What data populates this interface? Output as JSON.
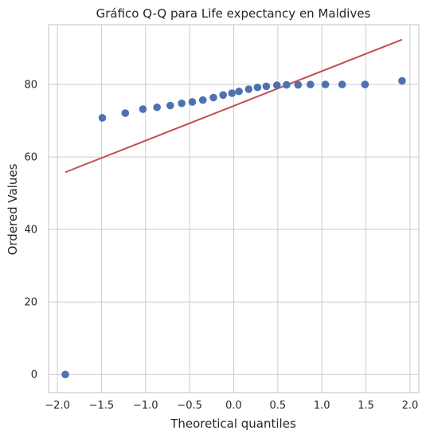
{
  "chart_data": {
    "type": "scatter",
    "title": "Gráfico Q-Q para Life expectancy en Maldives",
    "xlabel": "Theoretical quantiles",
    "ylabel": "Ordered Values",
    "xlim": [
      -2.1,
      2.1
    ],
    "ylim": [
      -5,
      96.5
    ],
    "xticks": [
      -2.0,
      -1.5,
      -1.0,
      -0.5,
      0.0,
      0.5,
      1.0,
      1.5,
      2.0
    ],
    "xtick_labels": [
      "−2.0",
      "−1.5",
      "−1.0",
      "−0.5",
      "0.0",
      "0.5",
      "1.0",
      "1.5",
      "2.0"
    ],
    "yticks": [
      0,
      20,
      40,
      60,
      80
    ],
    "ytick_labels": [
      "0",
      "20",
      "40",
      "60",
      "80"
    ],
    "grid": true,
    "series": [
      {
        "kind": "points",
        "color": "#4c72b0",
        "points": [
          {
            "x": -1.91,
            "y": 0.0
          },
          {
            "x": -1.49,
            "y": 70.8
          },
          {
            "x": -1.23,
            "y": 72.1
          },
          {
            "x": -1.03,
            "y": 73.2
          },
          {
            "x": -0.87,
            "y": 73.7
          },
          {
            "x": -0.72,
            "y": 74.2
          },
          {
            "x": -0.59,
            "y": 74.8
          },
          {
            "x": -0.47,
            "y": 75.2
          },
          {
            "x": -0.35,
            "y": 75.7
          },
          {
            "x": -0.23,
            "y": 76.4
          },
          {
            "x": -0.12,
            "y": 77.1
          },
          {
            "x": -0.02,
            "y": 77.6
          },
          {
            "x": 0.06,
            "y": 78.1
          },
          {
            "x": 0.17,
            "y": 78.7
          },
          {
            "x": 0.27,
            "y": 79.2
          },
          {
            "x": 0.37,
            "y": 79.5
          },
          {
            "x": 0.49,
            "y": 79.8
          },
          {
            "x": 0.6,
            "y": 79.9
          },
          {
            "x": 0.73,
            "y": 79.9
          },
          {
            "x": 0.87,
            "y": 80.0
          },
          {
            "x": 1.04,
            "y": 80.0
          },
          {
            "x": 1.23,
            "y": 80.0
          },
          {
            "x": 1.49,
            "y": 80.0
          },
          {
            "x": 1.91,
            "y": 81.0
          }
        ]
      },
      {
        "kind": "line",
        "color": "#c44e52",
        "points": [
          {
            "x": -1.91,
            "y": 55.8
          },
          {
            "x": 1.91,
            "y": 92.4
          }
        ]
      }
    ]
  }
}
